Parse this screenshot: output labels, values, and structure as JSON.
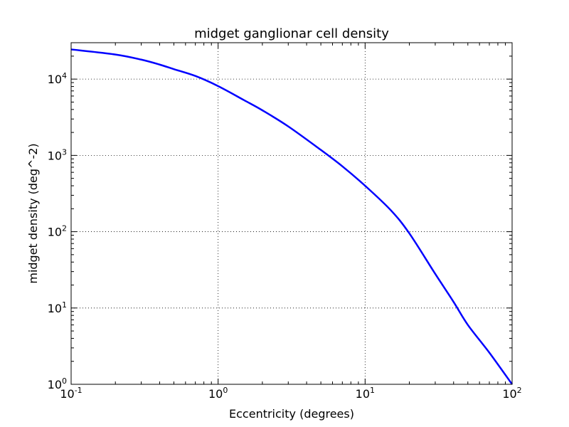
{
  "chart_data": {
    "type": "line",
    "title": "midget ganglionar cell density",
    "xlabel": "Eccentricity (degrees)",
    "ylabel": "midget density (deg^-2)",
    "xscale": "log",
    "yscale": "log",
    "xlim": [
      0.1,
      100
    ],
    "ylim": [
      1,
      30000
    ],
    "grid": true,
    "legend": "none",
    "x_ticks": [
      {
        "base": "10",
        "exp": "-1",
        "value": 0.1
      },
      {
        "base": "10",
        "exp": "0",
        "value": 1
      },
      {
        "base": "10",
        "exp": "1",
        "value": 10
      },
      {
        "base": "10",
        "exp": "2",
        "value": 100
      }
    ],
    "y_ticks": [
      {
        "base": "10",
        "exp": "0",
        "value": 1
      },
      {
        "base": "10",
        "exp": "1",
        "value": 10
      },
      {
        "base": "10",
        "exp": "2",
        "value": 100
      },
      {
        "base": "10",
        "exp": "3",
        "value": 1000
      },
      {
        "base": "10",
        "exp": "4",
        "value": 10000
      }
    ],
    "series": [
      {
        "color": "#0000ff",
        "x": [
          0.1,
          0.2,
          0.3,
          0.4,
          0.5,
          0.7,
          1,
          1.5,
          2,
          3,
          5,
          7,
          10,
          15,
          20,
          30,
          40,
          50,
          70,
          100
        ],
        "y": [
          24500,
          21000,
          18000,
          15500,
          13500,
          11000,
          8100,
          5300,
          3900,
          2400,
          1180,
          720,
          400,
          190,
          95,
          28,
          12,
          6,
          2.6,
          1
        ]
      }
    ]
  }
}
